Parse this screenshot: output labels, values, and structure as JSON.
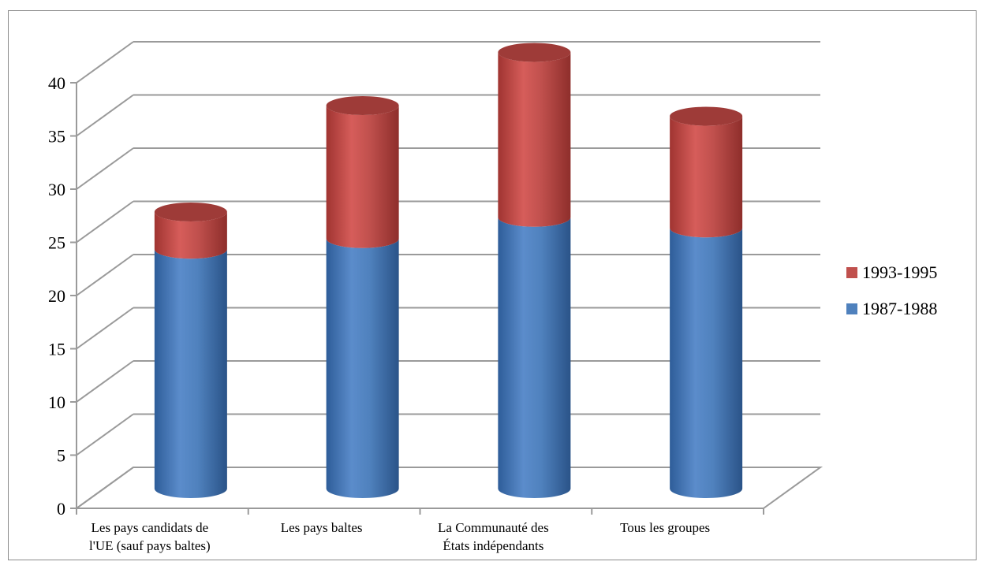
{
  "chart_data": {
    "type": "bar",
    "stacked": true,
    "three_d": true,
    "categories": [
      [
        "Les pays candidats de",
        "l'UE (sauf pays baltes)"
      ],
      [
        "Les pays baltes"
      ],
      [
        "La Communauté des",
        "États indépendants"
      ],
      [
        "Tous les groupes"
      ]
    ],
    "series": [
      {
        "name": "1987-1988",
        "values": [
          22.5,
          23.5,
          25.5,
          24.5
        ],
        "color": "#4f81bd"
      },
      {
        "name": "1993-1995",
        "values": [
          3.5,
          12.5,
          15.5,
          10.5
        ],
        "color": "#c0504d"
      }
    ],
    "yticks": [
      0,
      5,
      10,
      15,
      20,
      25,
      30,
      35,
      40
    ],
    "ylim": [
      0,
      40
    ],
    "grid": true,
    "legend": "right",
    "legend_order": [
      "1993-1995",
      "1987-1988"
    ]
  }
}
